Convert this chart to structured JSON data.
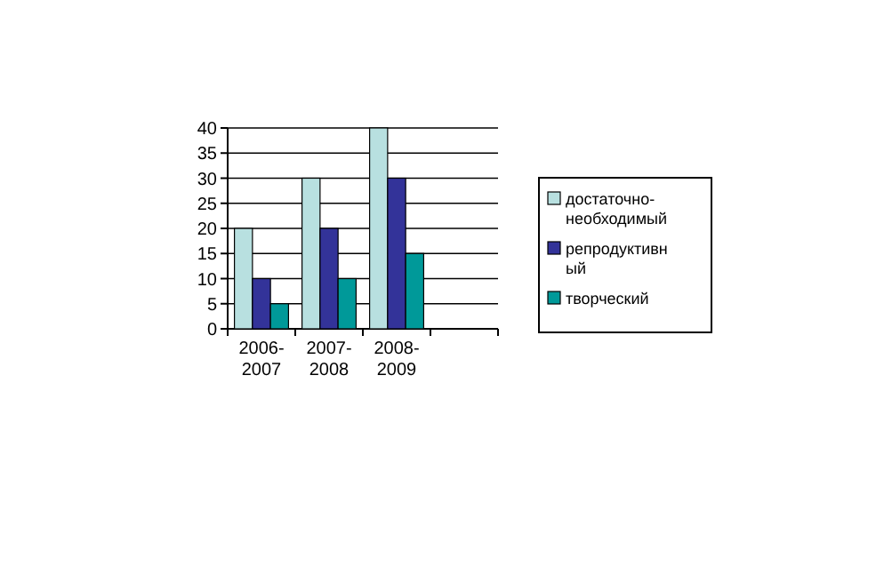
{
  "chart_data": {
    "type": "bar",
    "categories": [
      "2006-2007",
      "2007-2008",
      "2008-2009",
      null
    ],
    "series": [
      {
        "name": "достаточно-необходимый",
        "color": "#b8e0e0",
        "values": [
          20,
          30,
          40,
          null
        ]
      },
      {
        "name": "репродуктивный",
        "color": "#333399",
        "values": [
          10,
          20,
          30,
          null
        ]
      },
      {
        "name": "творческий",
        "color": "#009999",
        "values": [
          5,
          10,
          15,
          null
        ]
      }
    ],
    "ylim": [
      0,
      40
    ],
    "yticks": [
      0,
      5,
      10,
      15,
      20,
      25,
      30,
      35,
      40
    ],
    "grid": "y",
    "legend": "right"
  }
}
